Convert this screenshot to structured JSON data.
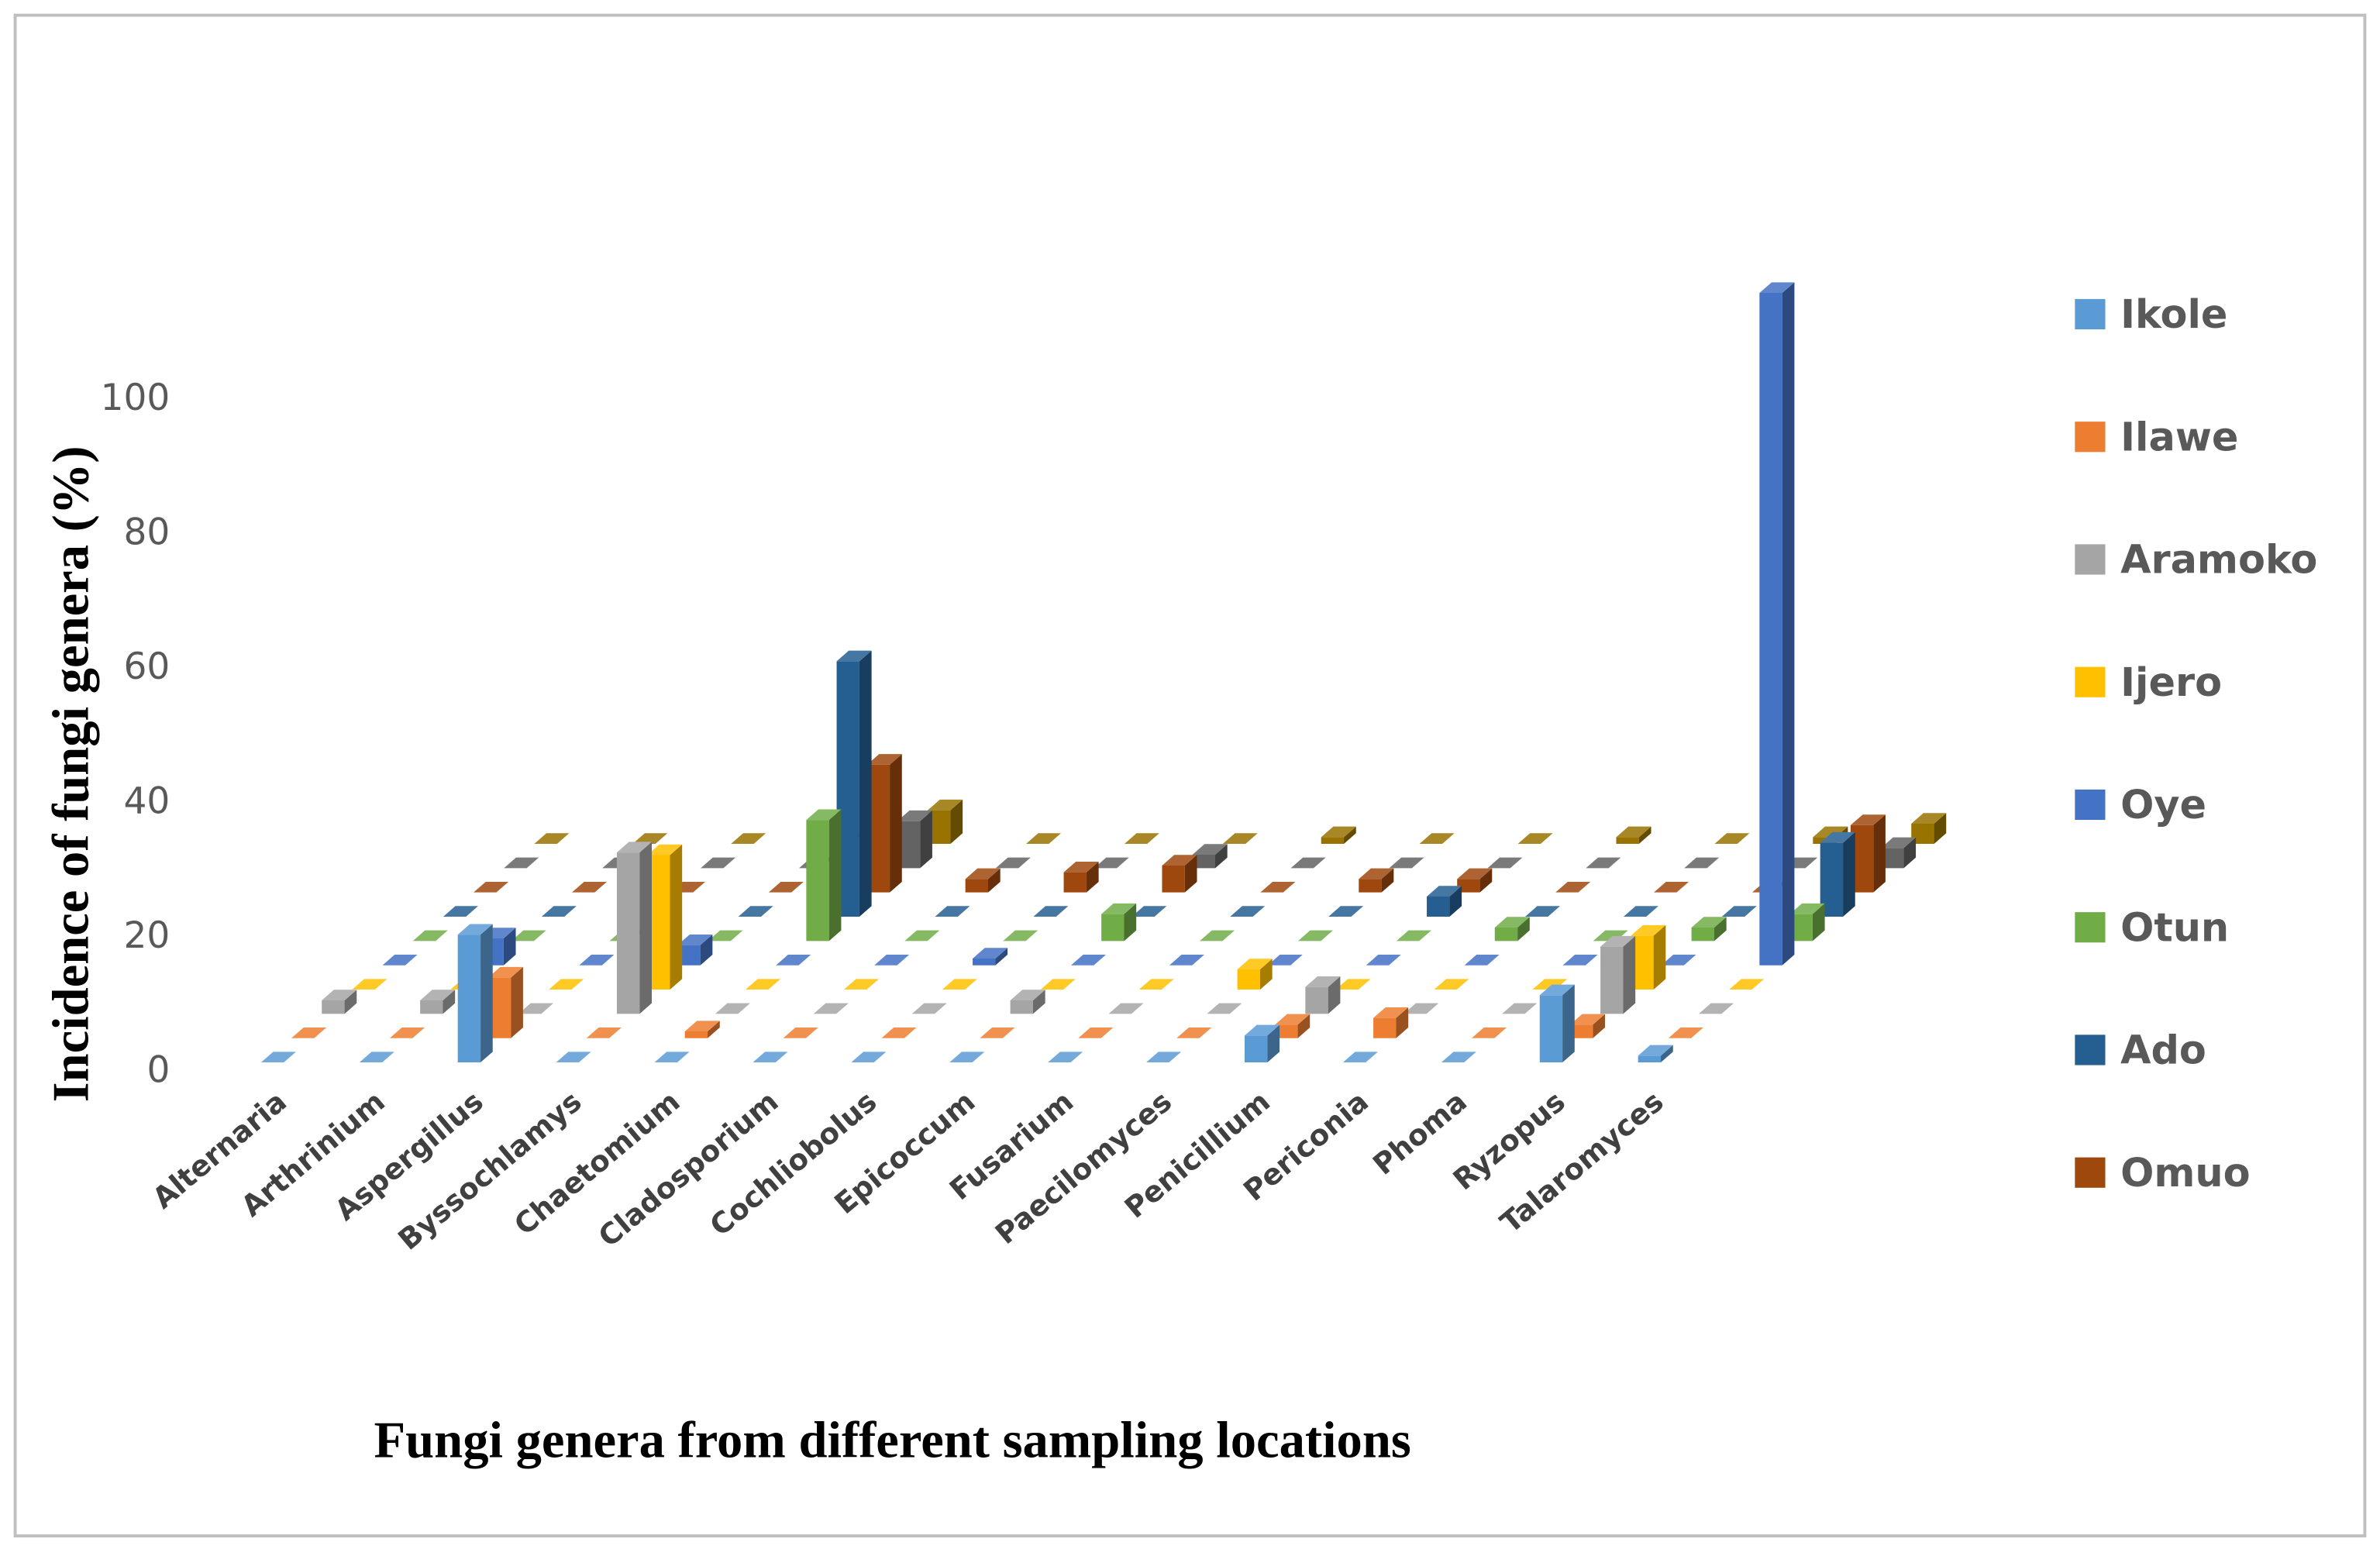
{
  "chart_data": {
    "type": "bar3d",
    "xlabel": "Fungi genera from different sampling locations",
    "ylabel": "Incidence of fungi genera (%)",
    "categories": [
      "Alternaria",
      "Arthrinium",
      "Aspergillus",
      "Byssochlamys",
      "Chaetomium",
      "Cladosporium",
      "Cochliobolus",
      "Epicoccum",
      "Fusarium",
      "Paecilomyces",
      "Penicillium",
      "Periconia",
      "Phoma",
      "Ryzopus",
      "Talaromyces"
    ],
    "ylim": [
      0,
      100
    ],
    "yticks": [
      0,
      20,
      40,
      60,
      80,
      100
    ],
    "series": [
      {
        "name": "Ikole",
        "color": "#5b9bd5",
        "values": [
          0,
          0,
          19,
          0,
          0,
          0,
          0,
          0,
          0,
          0,
          4,
          0,
          0,
          10,
          1
        ]
      },
      {
        "name": "Ilawe",
        "color": "#ed7d31",
        "values": [
          0,
          0,
          9,
          0,
          1,
          0,
          0,
          0,
          0,
          0,
          2,
          3,
          0,
          2,
          0
        ]
      },
      {
        "name": "Aramoko",
        "color": "#a5a5a5",
        "values": [
          2,
          2,
          0,
          24,
          0,
          0,
          0,
          2,
          0,
          0,
          4,
          0,
          0,
          10,
          0
        ]
      },
      {
        "name": "Ijero",
        "color": "#ffc000",
        "values": [
          0,
          0,
          0,
          20,
          0,
          0,
          0,
          0,
          0,
          3,
          0,
          0,
          0,
          8,
          0
        ]
      },
      {
        "name": "Oye",
        "color": "#4472c4",
        "values": [
          0,
          4,
          0,
          3,
          0,
          0,
          1,
          0,
          0,
          0,
          0,
          0,
          0,
          0,
          100
        ]
      },
      {
        "name": "Otun",
        "color": "#70ad47",
        "values": [
          0,
          0,
          0,
          0,
          18,
          0,
          0,
          4,
          0,
          0,
          0,
          2,
          0,
          2,
          4
        ]
      },
      {
        "name": "Ado",
        "color": "#255e91",
        "values": [
          0,
          0,
          0,
          0,
          38,
          0,
          0,
          0,
          0,
          0,
          3,
          0,
          0,
          0,
          11
        ]
      },
      {
        "name": "Omuo",
        "color": "#9e480e",
        "values": [
          0,
          0,
          0,
          0,
          19,
          2,
          3,
          4,
          0,
          2,
          2,
          0,
          0,
          0,
          10
        ]
      },
      {
        "name": null,
        "color": "#636363",
        "values": [
          0,
          0,
          0,
          0,
          7,
          0,
          0,
          2,
          0,
          0,
          0,
          0,
          0,
          0,
          3
        ]
      },
      {
        "name": null,
        "color": "#997300",
        "values": [
          0,
          0,
          0,
          0,
          5,
          0,
          0,
          0,
          1,
          0,
          0,
          1,
          0,
          1,
          3
        ]
      }
    ]
  }
}
